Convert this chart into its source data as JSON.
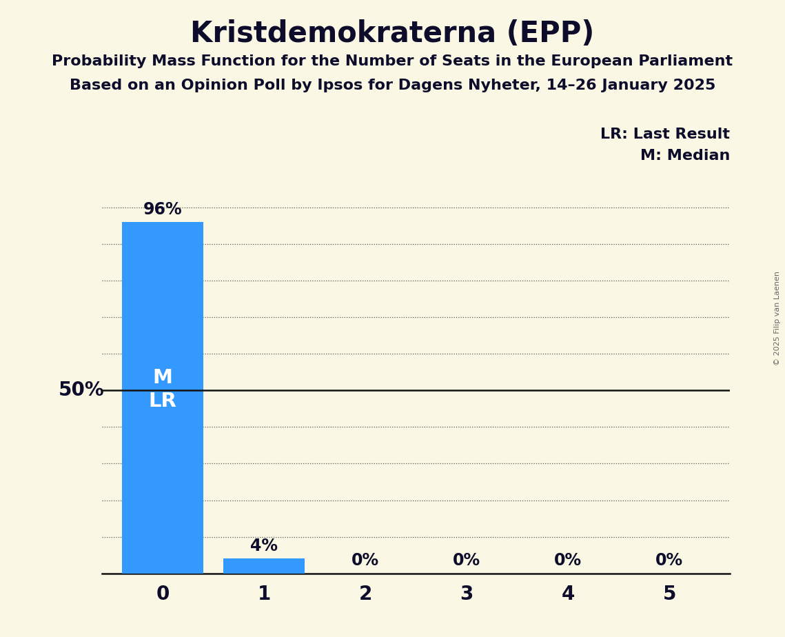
{
  "title": "Kristdemokraterna (EPP)",
  "subtitle1": "Probability Mass Function for the Number of Seats in the European Parliament",
  "subtitle2": "Based on an Opinion Poll by Ipsos for Dagens Nyheter, 14–26 January 2025",
  "copyright": "© 2025 Filip van Laenen",
  "categories": [
    0,
    1,
    2,
    3,
    4,
    5
  ],
  "values": [
    0.96,
    0.04,
    0.0,
    0.0,
    0.0,
    0.0
  ],
  "bar_color": "#3399ff",
  "background_color": "#faf8e4",
  "title_color": "#0d0d2b",
  "text_color": "#0d0d2b",
  "ylabel_text": "50%",
  "ylabel_value": 0.5,
  "bar_labels": [
    "96%",
    "4%",
    "0%",
    "0%",
    "0%",
    "0%"
  ],
  "ylim": [
    0,
    1.08
  ],
  "dotted_gridlines": [
    0.1,
    0.2,
    0.3,
    0.4,
    0.6,
    0.7,
    0.8,
    0.9,
    1.0
  ],
  "solid_line": 0.5,
  "median_seat": 0,
  "last_result_seat": 0,
  "legend_lr": "LR: Last Result",
  "legend_m": "M: Median",
  "title_fontsize": 30,
  "subtitle_fontsize": 16,
  "bar_label_fontsize": 17,
  "ylabel_fontsize": 20,
  "tick_fontsize": 20,
  "marker_fontsize": 21,
  "legend_fontsize": 16
}
